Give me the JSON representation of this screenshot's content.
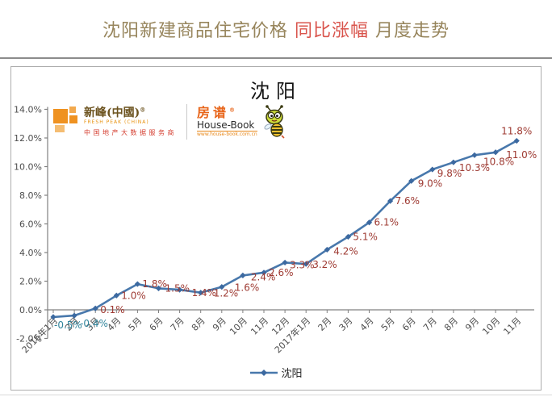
{
  "page": {
    "title_part1": "沈阳新建商品住宅价格",
    "title_part2": "同比涨幅",
    "title_part3": "月度走势"
  },
  "logos": {
    "fresh_peak": {
      "name": "新峰(中國)",
      "reg": "®",
      "sub": "FRESH PEAK (CHINA)",
      "tagline": "中国地产大数据服务商"
    },
    "house_book": {
      "name": "房谱",
      "reg": "®",
      "sub": "House-Book",
      "url": "www.house-book.com.cn"
    }
  },
  "chart_data": {
    "type": "line",
    "title": "沈阳",
    "xlabel": "",
    "ylabel": "",
    "ylim": [
      -2,
      14
    ],
    "ytick_step": 2,
    "ytick_suffix": "%",
    "grid": false,
    "legend_position": "bottom",
    "categories": [
      "2016年1月",
      "2月",
      "3月",
      "4月",
      "5月",
      "6月",
      "7月",
      "8月",
      "9月",
      "10月",
      "11月",
      "12月",
      "2017年1月",
      "2月",
      "3月",
      "4月",
      "5月",
      "6月",
      "7月",
      "8月",
      "9月",
      "10月",
      "11月"
    ],
    "series": [
      {
        "name": "沈阳",
        "values": [
          -0.5,
          -0.4,
          0.1,
          1.0,
          1.8,
          1.5,
          1.4,
          1.2,
          1.6,
          2.4,
          2.6,
          3.3,
          3.2,
          4.2,
          5.1,
          6.1,
          7.6,
          9.0,
          9.8,
          10.3,
          10.8,
          11.0,
          11.8
        ]
      }
    ],
    "colors": {
      "line": "#4878ac",
      "marker": "#3c69a0",
      "data_label": "#9e3a32",
      "data_label_negative": "#31859c",
      "axis": "#808080",
      "tick_text": "#4d4d4d"
    }
  }
}
